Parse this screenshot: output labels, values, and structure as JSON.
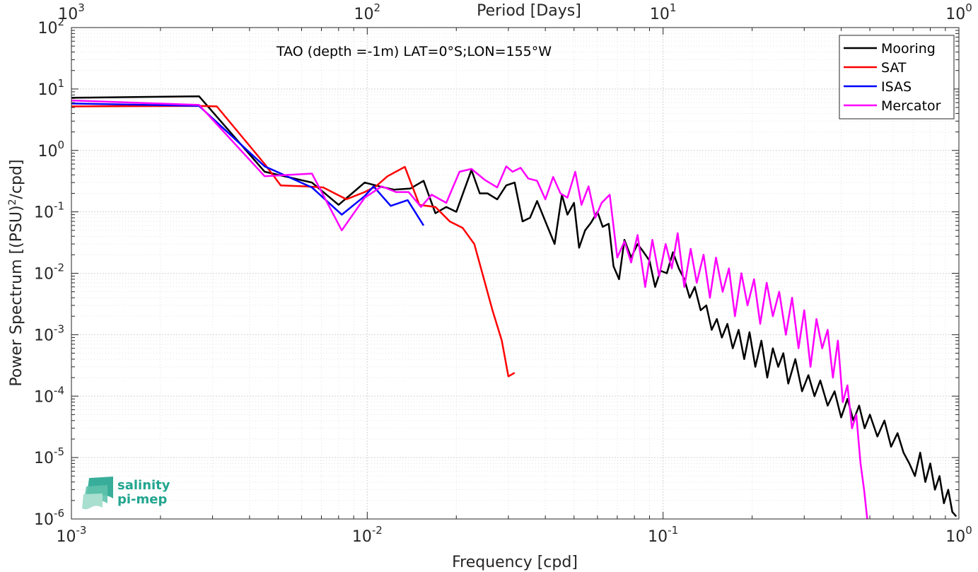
{
  "chart_data": {
    "type": "line",
    "title": "",
    "xlabel": "Frequency [cpd]",
    "ylabel_main": "Power Spectrum [(PSU)",
    "ylabel_sup": "2",
    "ylabel_tail": "/cpd]",
    "x2label": "Period [Days]",
    "annotation": "TAO (depth =-1m) LAT=0°S;LON=155°W",
    "xscale": "log",
    "yscale": "log",
    "xlim": [
      0.001,
      1
    ],
    "ylim": [
      1e-06,
      100
    ],
    "grid": true,
    "legend_position": "top-right",
    "x_ticks": [
      {
        "value": 0.001,
        "base": "10",
        "exp": "-3"
      },
      {
        "value": 0.01,
        "base": "10",
        "exp": "-2"
      },
      {
        "value": 0.1,
        "base": "10",
        "exp": "-1"
      },
      {
        "value": 1,
        "base": "10",
        "exp": "0"
      }
    ],
    "x2_ticks": [
      {
        "value": 0.001,
        "base": "10",
        "exp": "3"
      },
      {
        "value": 0.01,
        "base": "10",
        "exp": "2"
      },
      {
        "value": 0.1,
        "base": "10",
        "exp": "1"
      },
      {
        "value": 1,
        "base": "10",
        "exp": "0"
      }
    ],
    "y_ticks": [
      {
        "value": 1e-06,
        "base": "10",
        "exp": "-6"
      },
      {
        "value": 1e-05,
        "base": "10",
        "exp": "-5"
      },
      {
        "value": 0.0001,
        "base": "10",
        "exp": "-4"
      },
      {
        "value": 0.001,
        "base": "10",
        "exp": "-3"
      },
      {
        "value": 0.01,
        "base": "10",
        "exp": "-2"
      },
      {
        "value": 0.1,
        "base": "10",
        "exp": "-1"
      },
      {
        "value": 1,
        "base": "10",
        "exp": "0"
      },
      {
        "value": 10,
        "base": "10",
        "exp": "1"
      },
      {
        "value": 100,
        "base": "10",
        "exp": "2"
      }
    ],
    "series": [
      {
        "name": "Mooring",
        "color": "#000000",
        "x": [
          0.001,
          0.0027,
          0.0045,
          0.0065,
          0.008,
          0.0098,
          0.011,
          0.0123,
          0.014,
          0.0155,
          0.017,
          0.0185,
          0.02,
          0.0225,
          0.024,
          0.0255,
          0.0275,
          0.0295,
          0.0315,
          0.0335,
          0.0355,
          0.0375,
          0.04,
          0.043,
          0.0455,
          0.0475,
          0.05,
          0.052,
          0.0545,
          0.057,
          0.06,
          0.0625,
          0.0655,
          0.068,
          0.071,
          0.074,
          0.078,
          0.082,
          0.086,
          0.09,
          0.094,
          0.098,
          0.103,
          0.108,
          0.113,
          0.118,
          0.123,
          0.128,
          0.134,
          0.14,
          0.146,
          0.152,
          0.158,
          0.165,
          0.172,
          0.18,
          0.188,
          0.196,
          0.205,
          0.215,
          0.225,
          0.235,
          0.245,
          0.255,
          0.265,
          0.28,
          0.295,
          0.31,
          0.325,
          0.34,
          0.36,
          0.38,
          0.4,
          0.42,
          0.44,
          0.46,
          0.48,
          0.5,
          0.53,
          0.56,
          0.59,
          0.62,
          0.65,
          0.68,
          0.71,
          0.74,
          0.77,
          0.8,
          0.83,
          0.86,
          0.89,
          0.92,
          0.95,
          0.98
        ],
        "y": [
          7.2,
          7.6,
          0.45,
          0.3,
          0.13,
          0.3,
          0.26,
          0.23,
          0.24,
          0.32,
          0.095,
          0.12,
          0.1,
          0.48,
          0.2,
          0.2,
          0.16,
          0.27,
          0.3,
          0.07,
          0.08,
          0.15,
          0.07,
          0.03,
          0.19,
          0.09,
          0.14,
          0.026,
          0.05,
          0.066,
          0.1,
          0.057,
          0.064,
          0.013,
          0.008,
          0.035,
          0.018,
          0.03,
          0.022,
          0.016,
          0.006,
          0.011,
          0.01,
          0.022,
          0.012,
          0.008,
          0.004,
          0.006,
          0.0025,
          0.003,
          0.0012,
          0.0018,
          0.0009,
          0.0015,
          0.0006,
          0.0012,
          0.0004,
          0.0011,
          0.0003,
          0.0008,
          0.0002,
          0.0006,
          0.0003,
          0.0005,
          0.00016,
          0.0004,
          0.00012,
          0.00022,
          0.0001,
          0.00018,
          7e-05,
          0.00012,
          4.5e-05,
          9e-05,
          4e-05,
          7e-05,
          3e-05,
          5e-05,
          2.2e-05,
          4e-05,
          1.5e-05,
          2.5e-05,
          1.2e-05,
          8e-06,
          5e-06,
          1.2e-05,
          4e-06,
          8e-06,
          3e-06,
          5e-06,
          1.8e-06,
          3e-06,
          1.3e-06,
          1.1e-06
        ]
      },
      {
        "name": "SAT",
        "color": "#ff0000",
        "x": [
          0.001,
          0.0027,
          0.0031,
          0.0045,
          0.0051,
          0.0062,
          0.0071,
          0.0085,
          0.0098,
          0.0107,
          0.0117,
          0.0134,
          0.015,
          0.017,
          0.019,
          0.021,
          0.023,
          0.0245,
          0.0265,
          0.0285,
          0.03,
          0.0315
        ],
        "y": [
          5.2,
          5.3,
          5.2,
          0.6,
          0.27,
          0.26,
          0.25,
          0.16,
          0.21,
          0.26,
          0.38,
          0.54,
          0.13,
          0.12,
          0.07,
          0.055,
          0.03,
          0.01,
          0.0025,
          0.0008,
          0.00021,
          0.00024
        ]
      },
      {
        "name": "ISAS",
        "color": "#0000ff",
        "x": [
          0.001,
          0.0027,
          0.0045,
          0.0065,
          0.0082,
          0.0098,
          0.0105,
          0.012,
          0.0137,
          0.0155
        ],
        "y": [
          5.8,
          5.3,
          0.55,
          0.25,
          0.09,
          0.18,
          0.26,
          0.125,
          0.155,
          0.06
        ]
      },
      {
        "name": "Mercator",
        "color": "#ff00ff",
        "x": [
          0.001,
          0.0027,
          0.0045,
          0.0065,
          0.0082,
          0.0098,
          0.0112,
          0.0125,
          0.0138,
          0.0152,
          0.0165,
          0.0185,
          0.0205,
          0.0225,
          0.025,
          0.0275,
          0.0295,
          0.031,
          0.033,
          0.035,
          0.0375,
          0.04,
          0.0425,
          0.045,
          0.0475,
          0.0505,
          0.053,
          0.056,
          0.059,
          0.062,
          0.066,
          0.07,
          0.074,
          0.078,
          0.082,
          0.087,
          0.092,
          0.097,
          0.102,
          0.107,
          0.112,
          0.118,
          0.124,
          0.13,
          0.137,
          0.144,
          0.151,
          0.159,
          0.167,
          0.175,
          0.184,
          0.193,
          0.203,
          0.213,
          0.224,
          0.235,
          0.247,
          0.26,
          0.273,
          0.287,
          0.3,
          0.315,
          0.33,
          0.345,
          0.36,
          0.375,
          0.39,
          0.405,
          0.42,
          0.435,
          0.45,
          0.465,
          0.478,
          0.49
        ],
        "y": [
          6.5,
          5.5,
          0.38,
          0.42,
          0.05,
          0.17,
          0.26,
          0.21,
          0.21,
          0.12,
          0.19,
          0.14,
          0.45,
          0.5,
          0.33,
          0.25,
          0.55,
          0.45,
          0.52,
          0.35,
          0.32,
          0.16,
          0.37,
          0.2,
          0.17,
          0.45,
          0.13,
          0.26,
          0.08,
          0.14,
          0.19,
          0.018,
          0.033,
          0.015,
          0.042,
          0.006,
          0.035,
          0.009,
          0.03,
          0.012,
          0.045,
          0.006,
          0.025,
          0.007,
          0.02,
          0.004,
          0.018,
          0.005,
          0.012,
          0.002,
          0.01,
          0.003,
          0.008,
          0.0015,
          0.007,
          0.002,
          0.005,
          0.001,
          0.004,
          0.0006,
          0.0025,
          0.0003,
          0.0018,
          0.0006,
          0.0012,
          0.0002,
          0.0008,
          8e-05,
          0.00015,
          3e-05,
          5e-05,
          8e-06,
          3e-06,
          1e-06
        ]
      }
    ]
  },
  "logo": {
    "line1": "salinity",
    "line2": "pi-mep"
  }
}
